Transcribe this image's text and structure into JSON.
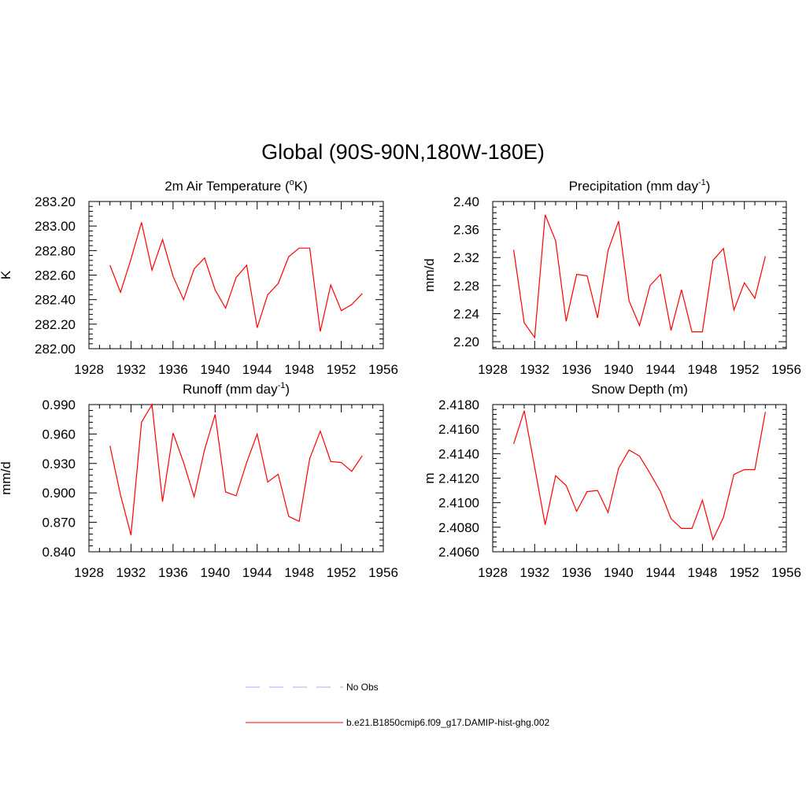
{
  "figure": {
    "title": "Global (90S-90N,180W-180E)"
  },
  "legend": {
    "items": [
      {
        "label": "No Obs",
        "color": "#aaaaff",
        "dashed": true
      },
      {
        "label": "b.e21.B1850cmip6.f09_g17.DAMIP-hist-ghg.002",
        "color": "#ff0000",
        "dashed": false
      }
    ]
  },
  "chart_data": [
    {
      "type": "line",
      "title": "2m Air Temperature (oK)",
      "title_parts": [
        "2m Air Temperature (",
        "o",
        "K)"
      ],
      "title_super_index": 1,
      "ylabel": "K",
      "xlim": [
        1928,
        1956
      ],
      "ylim": [
        282.0,
        283.2
      ],
      "xticks": [
        1928,
        1932,
        1936,
        1940,
        1944,
        1948,
        1952,
        1956
      ],
      "yticks": [
        "282.00",
        "282.20",
        "282.40",
        "282.60",
        "282.80",
        "283.00",
        "283.20"
      ],
      "color": "#ff0000",
      "x": [
        1930,
        1931,
        1932,
        1933,
        1934,
        1935,
        1936,
        1937,
        1938,
        1939,
        1940,
        1941,
        1942,
        1943,
        1944,
        1945,
        1946,
        1947,
        1948,
        1949,
        1950,
        1951,
        1952,
        1953,
        1954
      ],
      "values": [
        282.68,
        282.46,
        282.73,
        283.03,
        282.64,
        282.89,
        282.59,
        282.4,
        282.65,
        282.74,
        282.48,
        282.33,
        282.58,
        282.68,
        282.17,
        282.44,
        282.53,
        282.75,
        282.82,
        282.82,
        282.14,
        282.52,
        282.31,
        282.36,
        282.45
      ]
    },
    {
      "type": "line",
      "title": "Precipitation (mm day-1)",
      "title_parts": [
        "Precipitation (mm day",
        "-1",
        ")"
      ],
      "title_super_index": 1,
      "ylabel": "mm/d",
      "xlim": [
        1928,
        1956
      ],
      "ylim": [
        2.19,
        2.4
      ],
      "xticks": [
        1928,
        1932,
        1936,
        1940,
        1944,
        1948,
        1952,
        1956
      ],
      "yticks": [
        "2.20",
        "2.24",
        "2.28",
        "2.32",
        "2.36",
        "2.40"
      ],
      "color": "#ff0000",
      "x": [
        1930,
        1931,
        1932,
        1933,
        1934,
        1935,
        1936,
        1937,
        1938,
        1939,
        1940,
        1941,
        1942,
        1943,
        1944,
        1945,
        1946,
        1947,
        1948,
        1949,
        1950,
        1951,
        1952,
        1953,
        1954
      ],
      "values": [
        2.331,
        2.227,
        2.206,
        2.381,
        2.344,
        2.229,
        2.296,
        2.294,
        2.234,
        2.33,
        2.372,
        2.258,
        2.223,
        2.28,
        2.296,
        2.216,
        2.274,
        2.214,
        2.214,
        2.316,
        2.333,
        2.245,
        2.284,
        2.262,
        2.322
      ]
    },
    {
      "type": "line",
      "title": "Runoff (mm day-1)",
      "title_parts": [
        "Runoff (mm day",
        "-1",
        ")"
      ],
      "title_super_index": 1,
      "ylabel": "mm/d",
      "xlim": [
        1928,
        1956
      ],
      "ylim": [
        0.84,
        0.99
      ],
      "xticks": [
        1928,
        1932,
        1936,
        1940,
        1944,
        1948,
        1952,
        1956
      ],
      "yticks": [
        "0.840",
        "0.870",
        "0.900",
        "0.930",
        "0.960",
        "0.990"
      ],
      "color": "#ff0000",
      "x": [
        1930,
        1931,
        1932,
        1933,
        1934,
        1935,
        1936,
        1937,
        1938,
        1939,
        1940,
        1941,
        1942,
        1943,
        1944,
        1945,
        1946,
        1947,
        1948,
        1949,
        1950,
        1951,
        1952,
        1953,
        1954
      ],
      "values": [
        0.948,
        0.898,
        0.857,
        0.972,
        0.99,
        0.891,
        0.961,
        0.931,
        0.896,
        0.944,
        0.98,
        0.901,
        0.897,
        0.931,
        0.96,
        0.911,
        0.919,
        0.876,
        0.871,
        0.935,
        0.963,
        0.932,
        0.931,
        0.922,
        0.938
      ]
    },
    {
      "type": "line",
      "title": "Snow Depth (m)",
      "title_parts": [
        "Snow Depth (m)"
      ],
      "title_super_index": -1,
      "ylabel": "m",
      "xlim": [
        1928,
        1956
      ],
      "ylim": [
        2.406,
        2.418
      ],
      "xticks": [
        1928,
        1932,
        1936,
        1940,
        1944,
        1948,
        1952,
        1956
      ],
      "yticks": [
        "2.4060",
        "2.4080",
        "2.4100",
        "2.4120",
        "2.4140",
        "2.4160",
        "2.4180"
      ],
      "color": "#ff0000",
      "x": [
        1930,
        1931,
        1932,
        1933,
        1934,
        1935,
        1936,
        1937,
        1938,
        1939,
        1940,
        1941,
        1942,
        1943,
        1944,
        1945,
        1946,
        1947,
        1948,
        1949,
        1950,
        1951,
        1952,
        1953,
        1954
      ],
      "values": [
        2.4148,
        2.4175,
        2.4129,
        2.4082,
        2.4122,
        2.4114,
        2.4093,
        2.4109,
        2.411,
        2.4092,
        2.4128,
        2.4143,
        2.4138,
        2.4124,
        2.4109,
        2.4087,
        2.4079,
        2.4079,
        2.4102,
        2.407,
        2.4088,
        2.4123,
        2.4127,
        2.4127,
        2.4174
      ]
    }
  ]
}
